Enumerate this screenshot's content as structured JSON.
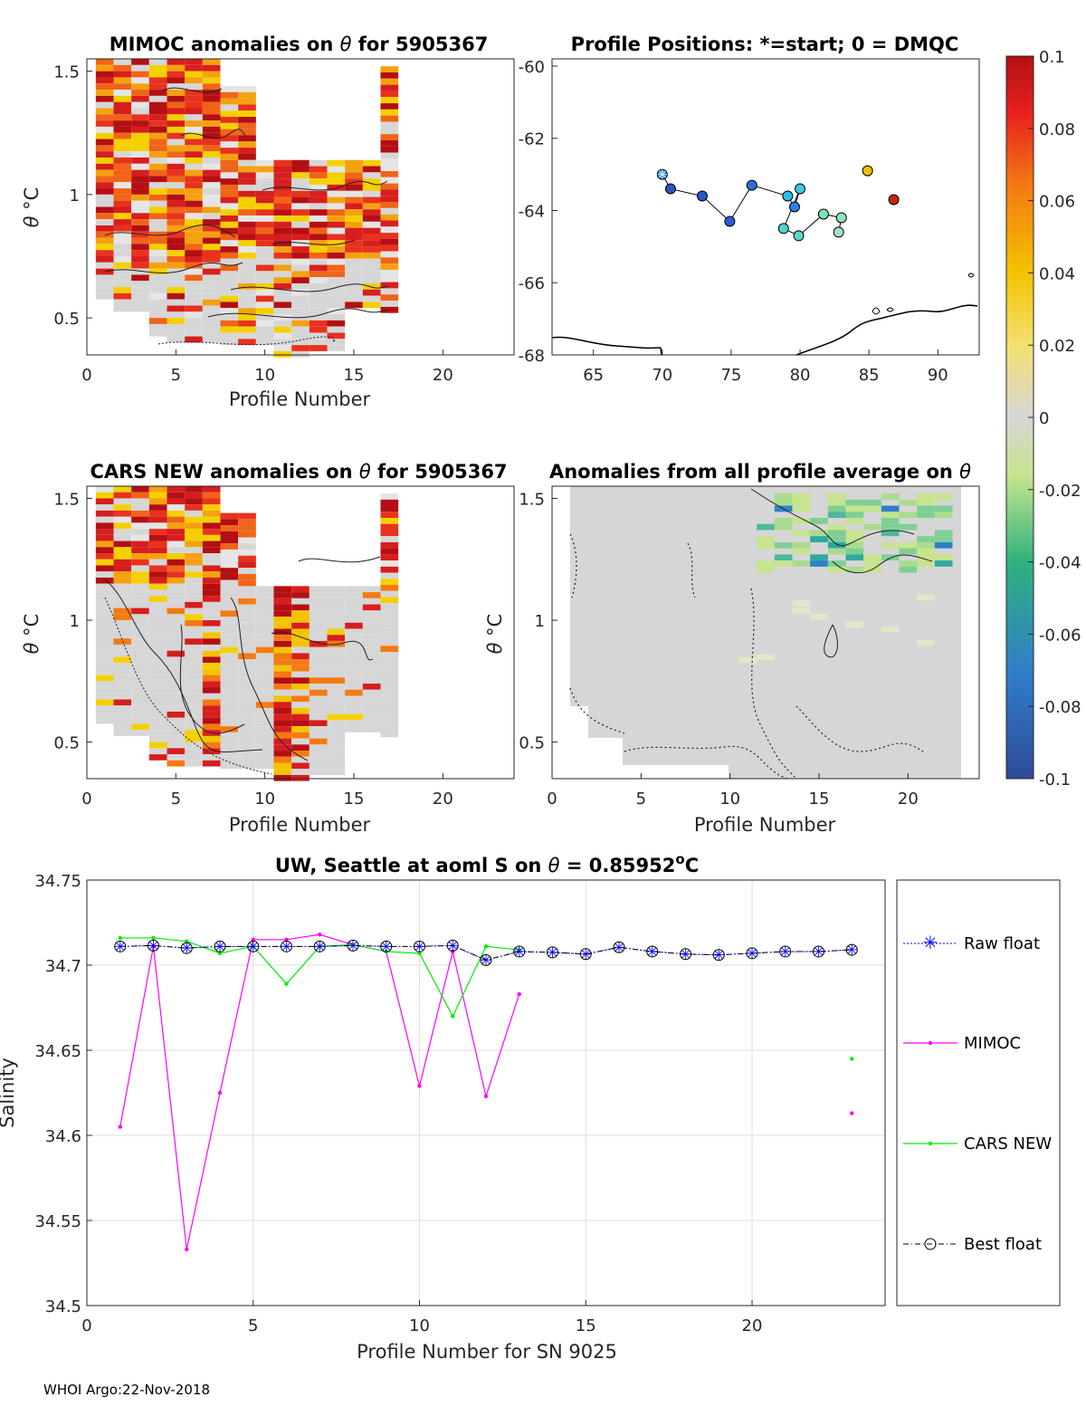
{
  "footer": "WHOI Argo:22-Nov-2018",
  "colors": {
    "mimoc": "#ff00ff",
    "cars": "#00ee00",
    "raw": "#0000ff",
    "best": "#000000",
    "cell_gray": "#d6d6d6"
  },
  "colorbar": {
    "min": -0.1,
    "max": 0.1,
    "ticks": [
      "0.1",
      "0.08",
      "0.06",
      "0.04",
      "0.02",
      "0",
      "-0.02",
      "-0.04",
      "-0.06",
      "-0.08",
      "-0.1"
    ]
  },
  "chart_data": [
    {
      "id": "mimoc",
      "type": "heatmap",
      "title_prefix": "MIMOC anomalies on",
      "title_sym": "θ",
      "title_suffix": " for 5905367",
      "xlabel": "Profile Number",
      "ylabel_sym": "θ",
      "ylabel_unit": "°C",
      "xlim": [
        0,
        24
      ],
      "ylim": [
        0.35,
        1.55
      ],
      "xticks": [
        0,
        5,
        10,
        15,
        20
      ],
      "yticks": [
        0.5,
        1,
        1.5
      ],
      "profiles": [
        {
          "n": 1,
          "top": 1.55,
          "bottom": 0.58
        },
        {
          "n": 2,
          "top": 1.55,
          "bottom": 0.53
        },
        {
          "n": 3,
          "top": 1.55,
          "bottom": 0.53
        },
        {
          "n": 4,
          "top": 1.55,
          "bottom": 0.42
        },
        {
          "n": 5,
          "top": 1.55,
          "bottom": 0.4
        },
        {
          "n": 6,
          "top": 1.55,
          "bottom": 0.4
        },
        {
          "n": 7,
          "top": 1.55,
          "bottom": 0.4
        },
        {
          "n": 8,
          "top": 1.44,
          "bottom": 0.4
        },
        {
          "n": 9,
          "top": 1.44,
          "bottom": 0.4
        },
        {
          "n": 10,
          "top": 1.14,
          "bottom": 0.4
        },
        {
          "n": 11,
          "top": 1.14,
          "bottom": 0.35
        },
        {
          "n": 12,
          "top": 1.14,
          "bottom": 0.35
        },
        {
          "n": 13,
          "top": 1.14,
          "bottom": 0.37
        },
        {
          "n": 14,
          "top": 1.14,
          "bottom": 0.37
        },
        {
          "n": 15,
          "top": 1.14,
          "bottom": 0.53
        },
        {
          "n": 16,
          "top": 1.14,
          "bottom": 0.53
        },
        {
          "n": 17,
          "top": 1.52,
          "bottom": 0.53
        }
      ]
    },
    {
      "id": "positions",
      "type": "scatter",
      "title": "Profile Positions: *=start; 0 = DMQC",
      "xlim": [
        62,
        93
      ],
      "ylim": [
        -68,
        -59.8
      ],
      "xticks": [
        65,
        70,
        75,
        80,
        85,
        90
      ],
      "yticks": [
        -60,
        -62,
        -64,
        -66,
        -68
      ],
      "points": [
        {
          "lon": 70.0,
          "lat": -63.0,
          "v": -0.05
        },
        {
          "lon": 70.6,
          "lat": -63.4,
          "v": -0.09
        },
        {
          "lon": 72.9,
          "lat": -63.6,
          "v": -0.085
        },
        {
          "lon": 74.9,
          "lat": -64.3,
          "v": -0.08
        },
        {
          "lon": 76.5,
          "lat": -63.3,
          "v": -0.07
        },
        {
          "lon": 79.1,
          "lat": -63.6,
          "v": -0.04
        },
        {
          "lon": 79.6,
          "lat": -63.9,
          "v": -0.06
        },
        {
          "lon": 80.0,
          "lat": -63.4,
          "v": -0.035
        },
        {
          "lon": 78.8,
          "lat": -64.5,
          "v": -0.03
        },
        {
          "lon": 79.9,
          "lat": -64.7,
          "v": -0.028
        },
        {
          "lon": 81.7,
          "lat": -64.1,
          "v": -0.02
        },
        {
          "lon": 83.0,
          "lat": -64.2,
          "v": -0.015
        },
        {
          "lon": 82.8,
          "lat": -64.6,
          "v": -0.01
        },
        {
          "lon": 84.9,
          "lat": -62.9,
          "v": 0.045
        },
        {
          "lon": 86.8,
          "lat": -63.7,
          "v": 0.095
        }
      ],
      "track_until": 13
    },
    {
      "id": "cars",
      "type": "heatmap",
      "title_prefix": "CARS NEW anomalies on",
      "title_sym": "θ",
      "title_suffix": " for 5905367",
      "xlabel": "Profile Number",
      "ylabel_sym": "θ",
      "ylabel_unit": "°C",
      "xlim": [
        0,
        24
      ],
      "ylim": [
        0.35,
        1.55
      ],
      "xticks": [
        0,
        5,
        10,
        15,
        20
      ],
      "yticks": [
        0.5,
        1,
        1.5
      ]
    },
    {
      "id": "allavg",
      "type": "heatmap",
      "title_prefix": "Anomalies from all profile average on",
      "title_sym": "θ",
      "title_suffix": "",
      "xlabel": "Profile Number",
      "ylabel_sym": "θ",
      "ylabel_unit": "°C",
      "xlim": [
        0,
        24
      ],
      "ylim": [
        0.35,
        1.55
      ],
      "xticks": [
        0,
        5,
        10,
        15,
        20
      ],
      "yticks": [
        0.5,
        1,
        1.5
      ]
    },
    {
      "id": "salinity",
      "type": "line",
      "title_prefix": "UW, Seattle at aoml S on",
      "title_sym": "θ",
      "title_suffix": " = 0.85952",
      "title_sup": "o",
      "title_unit": "C",
      "xlabel": "Profile Number for SN 9025",
      "ylabel": "Salinity",
      "xlim": [
        0,
        24
      ],
      "ylim": [
        34.5,
        34.75
      ],
      "xticks": [
        "0",
        "5",
        "10",
        "15",
        "20"
      ],
      "yticks": [
        "34.5",
        "34.55",
        "34.6",
        "34.65",
        "34.7",
        "34.75"
      ],
      "series": [
        {
          "name": "Raw float",
          "x": [
            1,
            2,
            3,
            4,
            5,
            6,
            7,
            8,
            9,
            10,
            11,
            12,
            13,
            14,
            15,
            16,
            17,
            18,
            19,
            20,
            21,
            22,
            23
          ],
          "values": [
            34.711,
            34.7115,
            34.71,
            34.711,
            34.711,
            34.711,
            34.711,
            34.7115,
            34.711,
            34.711,
            34.7115,
            34.703,
            34.708,
            34.7075,
            34.7065,
            34.7105,
            34.708,
            34.7065,
            34.706,
            34.707,
            34.708,
            34.708,
            34.709
          ]
        },
        {
          "name": "MIMOC",
          "x": [
            1,
            2,
            3,
            4,
            5,
            6,
            7,
            8,
            9,
            10,
            11,
            12,
            13,
            23
          ],
          "values": [
            34.605,
            34.711,
            34.533,
            34.625,
            34.715,
            34.715,
            34.718,
            34.712,
            34.708,
            34.629,
            34.708,
            34.623,
            34.683,
            34.613
          ]
        },
        {
          "name": "CARS NEW",
          "x": [
            1,
            2,
            3,
            4,
            5,
            6,
            7,
            8,
            9,
            10,
            11,
            12,
            13,
            23
          ],
          "values": [
            34.716,
            34.716,
            34.714,
            34.707,
            34.711,
            34.689,
            34.711,
            34.712,
            34.708,
            34.707,
            34.67,
            34.711,
            34.709,
            34.645
          ]
        },
        {
          "name": "Best float",
          "x": [
            1,
            2,
            3,
            4,
            5,
            6,
            7,
            8,
            9,
            10,
            11,
            12,
            13,
            14,
            15,
            16,
            17,
            18,
            19,
            20,
            21,
            22,
            23
          ],
          "values": [
            34.711,
            34.7115,
            34.71,
            34.711,
            34.711,
            34.711,
            34.711,
            34.7115,
            34.711,
            34.711,
            34.7115,
            34.703,
            34.708,
            34.7075,
            34.7065,
            34.7105,
            34.708,
            34.7065,
            34.706,
            34.707,
            34.708,
            34.708,
            34.709
          ]
        }
      ]
    }
  ]
}
